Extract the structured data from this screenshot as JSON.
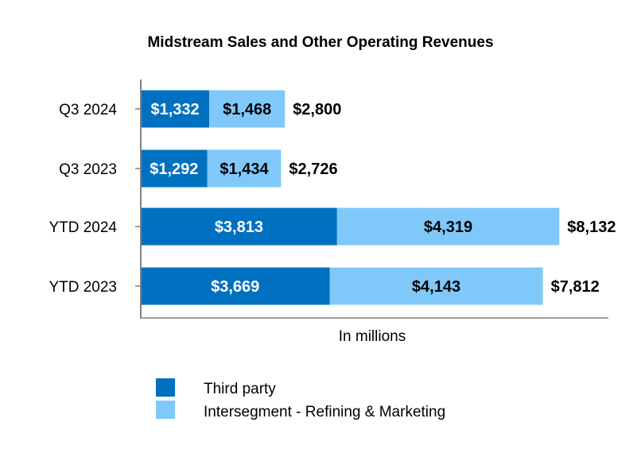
{
  "chart_data": {
    "type": "bar",
    "orientation": "horizontal",
    "stacked": true,
    "title": "Midstream Sales and Other Operating Revenues",
    "xlabel": "In millions",
    "ylabel": "",
    "categories": [
      "Q3 2024",
      "Q3 2023",
      "YTD 2024",
      "YTD 2023"
    ],
    "series": [
      {
        "name": "Third party",
        "color": "#0070C0",
        "label_color": "#FFFFFF",
        "values": [
          1332,
          1292,
          3813,
          3669
        ],
        "labels": [
          "$1,332",
          "$1,292",
          "$3,813",
          "$3,669"
        ]
      },
      {
        "name": "Intersegment - Refining & Marketing",
        "color": "#80C8FA",
        "label_color": "#000000",
        "values": [
          1468,
          1434,
          4319,
          4143
        ],
        "labels": [
          "$1,468",
          "$1,434",
          "$4,319",
          "$4,143"
        ]
      }
    ],
    "totals": [
      2800,
      2726,
      8132,
      7812
    ],
    "total_labels": [
      "$2,800",
      "$2,726",
      "$8,132",
      "$7,812"
    ],
    "xlim": [
      0,
      10000
    ],
    "grid": false,
    "legend_position": "bottom"
  }
}
